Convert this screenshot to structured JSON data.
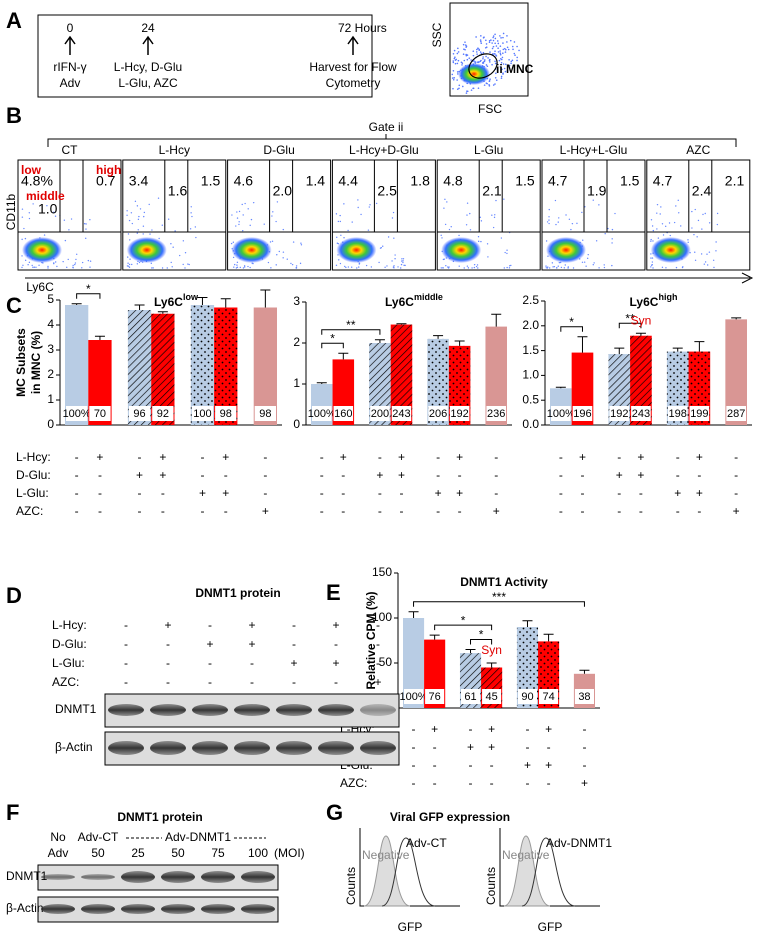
{
  "panels": [
    "A",
    "B",
    "C",
    "D",
    "E",
    "F",
    "G"
  ],
  "timeline": {
    "points": [
      {
        "time": "0",
        "labels": [
          "rIFN-γ",
          "Adv"
        ]
      },
      {
        "time": "24",
        "labels": [
          "L-Hcy, D-Glu",
          "L-Glu, AZC"
        ]
      },
      {
        "time": "72 Hours",
        "labels": [
          "Harvest for Flow",
          "Cytometry"
        ]
      }
    ]
  },
  "gating": {
    "y_axis": "SSC",
    "x_axis": "FSC",
    "gate": "ii MNC"
  },
  "flow": {
    "gate_title": "Gate ii",
    "y_axis": "CD11b",
    "x_axis": "Ly6C",
    "subset_labels": [
      "low",
      "middle",
      "high"
    ],
    "groups": [
      {
        "name": "CT",
        "low": "4.8%",
        "middle": "1.0",
        "high": "0.7"
      },
      {
        "name": "L-Hcy",
        "low": "3.4",
        "middle": "1.6",
        "high": "1.5"
      },
      {
        "name": "D-Glu",
        "low": "4.6",
        "middle": "2.0",
        "high": "1.4"
      },
      {
        "name": "L-Hcy+D-Glu",
        "low": "4.4",
        "middle": "2.5",
        "high": "1.8"
      },
      {
        "name": "L-Glu",
        "low": "4.8",
        "middle": "2.1",
        "high": "1.5"
      },
      {
        "name": "L-Hcy+L-Glu",
        "low": "4.7",
        "middle": "1.9",
        "high": "1.5"
      },
      {
        "name": "AZC",
        "low": "4.7",
        "middle": "2.4",
        "high": "2.1"
      }
    ]
  },
  "chart_data": [
    {
      "type": "bar",
      "title": "Ly6C",
      "title_sup": "low",
      "y_label": [
        "MC Subsets",
        "in MNC (%)"
      ],
      "values": [
        4.8,
        3.4,
        4.6,
        4.45,
        4.8,
        4.7,
        4.7
      ],
      "errors": [
        0.05,
        0.15,
        0.2,
        0.08,
        0.3,
        0.35,
        0.7
      ],
      "relative_labels": [
        "100%",
        "70",
        "96",
        "92",
        "100",
        "98",
        "98"
      ],
      "colors": [
        "#b8cce4",
        "#ff0000",
        "#b8cce4",
        "#ff0000",
        "#b8cce4",
        "#ff0000",
        "#d99694"
      ],
      "patterns": [
        "none",
        "none",
        "hatch",
        "hatch",
        "dots",
        "dots",
        "none"
      ],
      "ylim": [
        0,
        5
      ],
      "yticks": [
        0,
        1,
        2,
        3,
        4,
        5
      ],
      "annotations": [
        {
          "text": "*",
          "bars": [
            0,
            1
          ]
        }
      ],
      "conditions": [
        {
          "name": "L-Hcy:",
          "signs": [
            "-",
            "+",
            "-",
            "+",
            "-",
            "+",
            "-"
          ]
        },
        {
          "name": "D-Glu:",
          "signs": [
            "-",
            "-",
            "+",
            "+",
            "-",
            "-",
            "-"
          ]
        },
        {
          "name": "L-Glu:",
          "signs": [
            "-",
            "-",
            "-",
            "-",
            "+",
            "+",
            "-"
          ]
        },
        {
          "name": "AZC:",
          "signs": [
            "-",
            "-",
            "-",
            "-",
            "-",
            "-",
            "+"
          ]
        }
      ]
    },
    {
      "type": "bar",
      "title": "Ly6C",
      "title_sup": "middle",
      "values": [
        1.0,
        1.6,
        2.0,
        2.45,
        2.1,
        1.93,
        2.4
      ],
      "errors": [
        0.03,
        0.15,
        0.08,
        0.02,
        0.08,
        0.12,
        0.3
      ],
      "relative_labels": [
        "100%",
        "160",
        "200",
        "243",
        "206",
        "192",
        "236"
      ],
      "colors": [
        "#b8cce4",
        "#ff0000",
        "#b8cce4",
        "#ff0000",
        "#b8cce4",
        "#ff0000",
        "#d99694"
      ],
      "patterns": [
        "none",
        "none",
        "hatch",
        "hatch",
        "dots",
        "dots",
        "none"
      ],
      "ylim": [
        0,
        3
      ],
      "yticks": [
        0,
        1,
        2,
        3
      ],
      "annotations": [
        {
          "text": "*",
          "bars": [
            0,
            1
          ]
        },
        {
          "text": "**",
          "bars": [
            0,
            2
          ]
        }
      ],
      "conditions": [
        {
          "signs": [
            "-",
            "+",
            "-",
            "+",
            "-",
            "+",
            "-"
          ]
        },
        {
          "signs": [
            "-",
            "-",
            "+",
            "+",
            "-",
            "-",
            "-"
          ]
        },
        {
          "signs": [
            "-",
            "-",
            "-",
            "-",
            "+",
            "+",
            "-"
          ]
        },
        {
          "signs": [
            "-",
            "-",
            "-",
            "-",
            "-",
            "-",
            "+"
          ]
        }
      ]
    },
    {
      "type": "bar",
      "title": "Ly6C",
      "title_sup": "high",
      "values": [
        0.74,
        1.46,
        1.43,
        1.8,
        1.48,
        1.48,
        2.13
      ],
      "errors": [
        0.02,
        0.32,
        0.12,
        0.05,
        0.07,
        0.2,
        0.03
      ],
      "relative_labels": [
        "100%",
        "196",
        "192",
        "243",
        "198",
        "199",
        "287"
      ],
      "colors": [
        "#b8cce4",
        "#ff0000",
        "#b8cce4",
        "#ff0000",
        "#b8cce4",
        "#ff0000",
        "#d99694"
      ],
      "patterns": [
        "none",
        "none",
        "hatch",
        "hatch",
        "dots",
        "dots",
        "none"
      ],
      "ylim": [
        0,
        2.5
      ],
      "yticks": [
        {
          "value": 0,
          "label": "0.0"
        },
        0.5,
        {
          "value": 1,
          "label": "1.0"
        },
        1.5,
        {
          "value": 2,
          "label": "2.0"
        },
        2.5
      ],
      "annotations": [
        {
          "text": "*",
          "bars": [
            0,
            1
          ]
        },
        {
          "text": "**",
          "bars": [
            2,
            3
          ]
        },
        {
          "text": "Syn",
          "bars": [
            3
          ],
          "color": "#e00000"
        }
      ],
      "conditions": [
        {
          "signs": [
            "-",
            "+",
            "-",
            "+",
            "-",
            "+",
            "-"
          ]
        },
        {
          "signs": [
            "-",
            "-",
            "+",
            "+",
            "-",
            "-",
            "-"
          ]
        },
        {
          "signs": [
            "-",
            "-",
            "-",
            "-",
            "+",
            "+",
            "-"
          ]
        },
        {
          "signs": [
            "-",
            "-",
            "-",
            "-",
            "-",
            "-",
            "+"
          ]
        }
      ]
    },
    {
      "type": "bar",
      "title": "DNMT1 Activity",
      "y_label": [
        "Relative CPM (%)"
      ],
      "values": [
        100,
        76,
        61,
        45,
        90,
        74,
        38
      ],
      "errors": [
        7,
        5,
        4,
        5,
        7,
        8,
        4
      ],
      "value_labels": [
        "100%",
        "76",
        "61",
        "45",
        "90",
        "74",
        "38"
      ],
      "colors": [
        "#b8cce4",
        "#ff0000",
        "#b8cce4",
        "#ff0000",
        "#b8cce4",
        "#ff0000",
        "#d99694"
      ],
      "patterns": [
        "none",
        "none",
        "hatch",
        "hatch",
        "dots",
        "dots",
        "none"
      ],
      "ylim": [
        0,
        150
      ],
      "yticks": [
        0,
        50,
        100,
        150
      ],
      "annotations": [
        {
          "text": "***",
          "bars": [
            0,
            6
          ]
        },
        {
          "text": "*",
          "bars": [
            1,
            3
          ]
        },
        {
          "text": "*",
          "bars": [
            2,
            3
          ]
        },
        {
          "text": "Syn",
          "bars": [
            3
          ],
          "color": "#e00000"
        }
      ],
      "conditions": [
        {
          "name": "L-Hcy:",
          "signs": [
            "-",
            "+",
            "-",
            "+",
            "-",
            "+",
            "-"
          ]
        },
        {
          "name": "D-Glu:",
          "signs": [
            "-",
            "-",
            "+",
            "+",
            "-",
            "-",
            "-"
          ]
        },
        {
          "name": "L-Glu:",
          "signs": [
            "-",
            "-",
            "-",
            "-",
            "+",
            "+",
            "-"
          ]
        },
        {
          "name": "AZC:",
          "signs": [
            "-",
            "-",
            "-",
            "-",
            "-",
            "-",
            "+"
          ]
        }
      ]
    }
  ],
  "blot_d": {
    "title": "DNMT1 protein",
    "bands": [
      "DNMT1",
      "β-Actin"
    ],
    "conditions": [
      {
        "name": "L-Hcy:",
        "signs": [
          "-",
          "+",
          "-",
          "+",
          "-",
          "+",
          "-"
        ]
      },
      {
        "name": "D-Glu:",
        "signs": [
          "-",
          "-",
          "+",
          "+",
          "-",
          "-",
          "-"
        ]
      },
      {
        "name": "L-Glu:",
        "signs": [
          "-",
          "-",
          "-",
          "-",
          "+",
          "+",
          "-"
        ]
      },
      {
        "name": "AZC:",
        "signs": [
          "-",
          "-",
          "-",
          "-",
          "-",
          "-",
          "+"
        ]
      }
    ]
  },
  "blot_f": {
    "title": "DNMT1 protein",
    "top": [
      "No",
      "Adv-CT",
      "Adv-DNMT1"
    ],
    "lanes": [
      "Adv",
      "50",
      "25",
      "50",
      "75",
      "100"
    ],
    "unit": "(MOI)",
    "bands": [
      "DNMT1",
      "β-Actin"
    ]
  },
  "histograms": {
    "title": "Viral GFP expression",
    "y_axis": "Counts",
    "x_axis": "GFP",
    "negative": "Negative",
    "panels": [
      "Adv-CT",
      "Adv-DNMT1"
    ]
  }
}
